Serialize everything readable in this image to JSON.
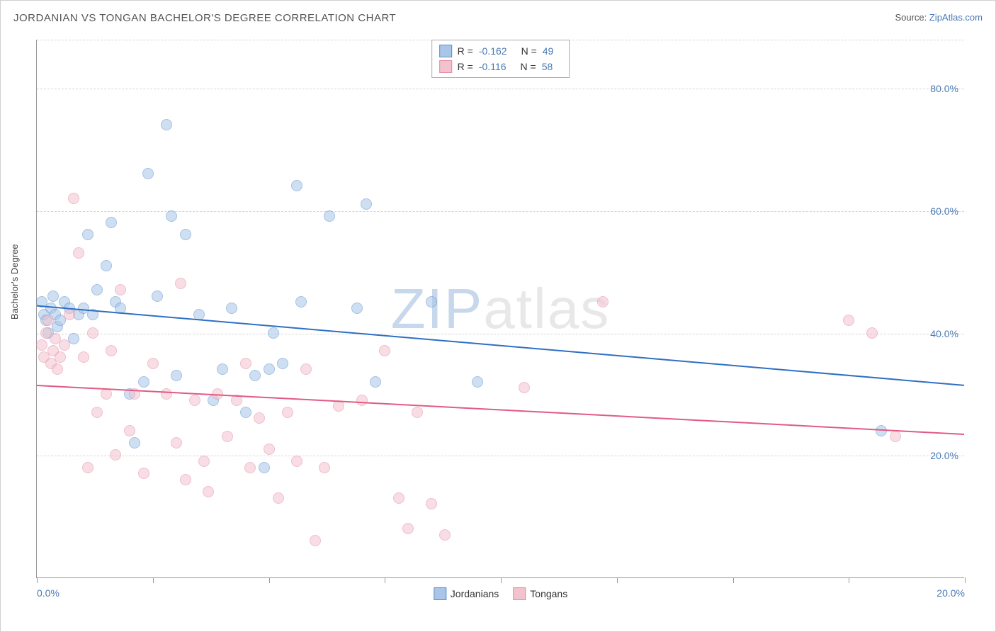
{
  "chart": {
    "type": "scatter",
    "title": "JORDANIAN VS TONGAN BACHELOR'S DEGREE CORRELATION CHART",
    "source_prefix": "Source: ",
    "source_link": "ZipAtlas.com",
    "ylabel": "Bachelor's Degree",
    "xlim": [
      0,
      20
    ],
    "ylim": [
      0,
      88
    ],
    "ytick_positions": [
      20,
      40,
      60,
      80
    ],
    "ytick_labels": [
      "20.0%",
      "40.0%",
      "60.0%",
      "80.0%"
    ],
    "xtick_positions": [
      0,
      2.5,
      5,
      7.5,
      10,
      12.5,
      15,
      17.5,
      20
    ],
    "xtick_labels_shown": {
      "0": "0.0%",
      "20": "20.0%"
    },
    "grid_color": "#d5d5d5",
    "background_color": "#ffffff",
    "axis_color": "#999999",
    "tick_label_color": "#4a7ab5",
    "marker_radius": 8,
    "marker_opacity": 0.55,
    "watermark_text_bold": "ZIP",
    "watermark_text_rest": "atlas",
    "series": [
      {
        "name": "Jordanians",
        "fill_color": "#a9c6e8",
        "stroke_color": "#5a8fce",
        "trend_color": "#2e6fc2",
        "trend_width": 2,
        "R": "-0.162",
        "N": "49",
        "trend": {
          "y_at_xmin": 44.5,
          "y_at_xmax": 31.5
        },
        "points": [
          [
            0.1,
            45
          ],
          [
            0.15,
            43
          ],
          [
            0.2,
            42
          ],
          [
            0.25,
            40
          ],
          [
            0.3,
            44
          ],
          [
            0.35,
            46
          ],
          [
            0.4,
            43
          ],
          [
            0.45,
            41
          ],
          [
            0.5,
            42
          ],
          [
            0.6,
            45
          ],
          [
            0.7,
            44
          ],
          [
            0.8,
            39
          ],
          [
            0.9,
            43
          ],
          [
            1.0,
            44
          ],
          [
            1.1,
            56
          ],
          [
            1.2,
            43
          ],
          [
            1.3,
            47
          ],
          [
            1.5,
            51
          ],
          [
            1.6,
            58
          ],
          [
            1.7,
            45
          ],
          [
            1.8,
            44
          ],
          [
            2.0,
            30
          ],
          [
            2.1,
            22
          ],
          [
            2.3,
            32
          ],
          [
            2.4,
            66
          ],
          [
            2.6,
            46
          ],
          [
            2.8,
            74
          ],
          [
            2.9,
            59
          ],
          [
            3.0,
            33
          ],
          [
            3.2,
            56
          ],
          [
            3.5,
            43
          ],
          [
            3.8,
            29
          ],
          [
            4.0,
            34
          ],
          [
            4.2,
            44
          ],
          [
            4.5,
            27
          ],
          [
            4.7,
            33
          ],
          [
            4.9,
            18
          ],
          [
            5.0,
            34
          ],
          [
            5.1,
            40
          ],
          [
            5.3,
            35
          ],
          [
            5.6,
            64
          ],
          [
            5.7,
            45
          ],
          [
            6.3,
            59
          ],
          [
            6.9,
            44
          ],
          [
            7.1,
            61
          ],
          [
            7.3,
            32
          ],
          [
            8.5,
            45
          ],
          [
            9.5,
            32
          ],
          [
            18.2,
            24
          ]
        ]
      },
      {
        "name": "Tongans",
        "fill_color": "#f3c2cf",
        "stroke_color": "#e48aa3",
        "trend_color": "#e15a84",
        "trend_width": 2,
        "R": "-0.116",
        "N": "58",
        "trend": {
          "y_at_xmin": 31.5,
          "y_at_xmax": 23.5
        },
        "points": [
          [
            0.1,
            38
          ],
          [
            0.15,
            36
          ],
          [
            0.2,
            40
          ],
          [
            0.25,
            42
          ],
          [
            0.3,
            35
          ],
          [
            0.35,
            37
          ],
          [
            0.4,
            39
          ],
          [
            0.45,
            34
          ],
          [
            0.5,
            36
          ],
          [
            0.6,
            38
          ],
          [
            0.7,
            43
          ],
          [
            0.8,
            62
          ],
          [
            0.9,
            53
          ],
          [
            1.0,
            36
          ],
          [
            1.1,
            18
          ],
          [
            1.2,
            40
          ],
          [
            1.3,
            27
          ],
          [
            1.5,
            30
          ],
          [
            1.6,
            37
          ],
          [
            1.7,
            20
          ],
          [
            1.8,
            47
          ],
          [
            2.0,
            24
          ],
          [
            2.1,
            30
          ],
          [
            2.3,
            17
          ],
          [
            2.5,
            35
          ],
          [
            2.8,
            30
          ],
          [
            3.0,
            22
          ],
          [
            3.1,
            48
          ],
          [
            3.2,
            16
          ],
          [
            3.4,
            29
          ],
          [
            3.6,
            19
          ],
          [
            3.7,
            14
          ],
          [
            3.9,
            30
          ],
          [
            4.1,
            23
          ],
          [
            4.3,
            29
          ],
          [
            4.5,
            35
          ],
          [
            4.6,
            18
          ],
          [
            4.8,
            26
          ],
          [
            5.0,
            21
          ],
          [
            5.2,
            13
          ],
          [
            5.4,
            27
          ],
          [
            5.6,
            19
          ],
          [
            5.8,
            34
          ],
          [
            6.0,
            6
          ],
          [
            6.2,
            18
          ],
          [
            6.5,
            28
          ],
          [
            7.0,
            29
          ],
          [
            7.5,
            37
          ],
          [
            7.8,
            13
          ],
          [
            8.0,
            8
          ],
          [
            8.2,
            27
          ],
          [
            8.5,
            12
          ],
          [
            8.8,
            7
          ],
          [
            10.5,
            31
          ],
          [
            12.2,
            45
          ],
          [
            17.5,
            42
          ],
          [
            18.0,
            40
          ],
          [
            18.5,
            23
          ]
        ]
      }
    ],
    "legend_bottom": [
      {
        "label": "Jordanians",
        "fill": "#a9c6e8",
        "stroke": "#5a8fce"
      },
      {
        "label": "Tongans",
        "fill": "#f3c2cf",
        "stroke": "#e48aa3"
      }
    ]
  }
}
